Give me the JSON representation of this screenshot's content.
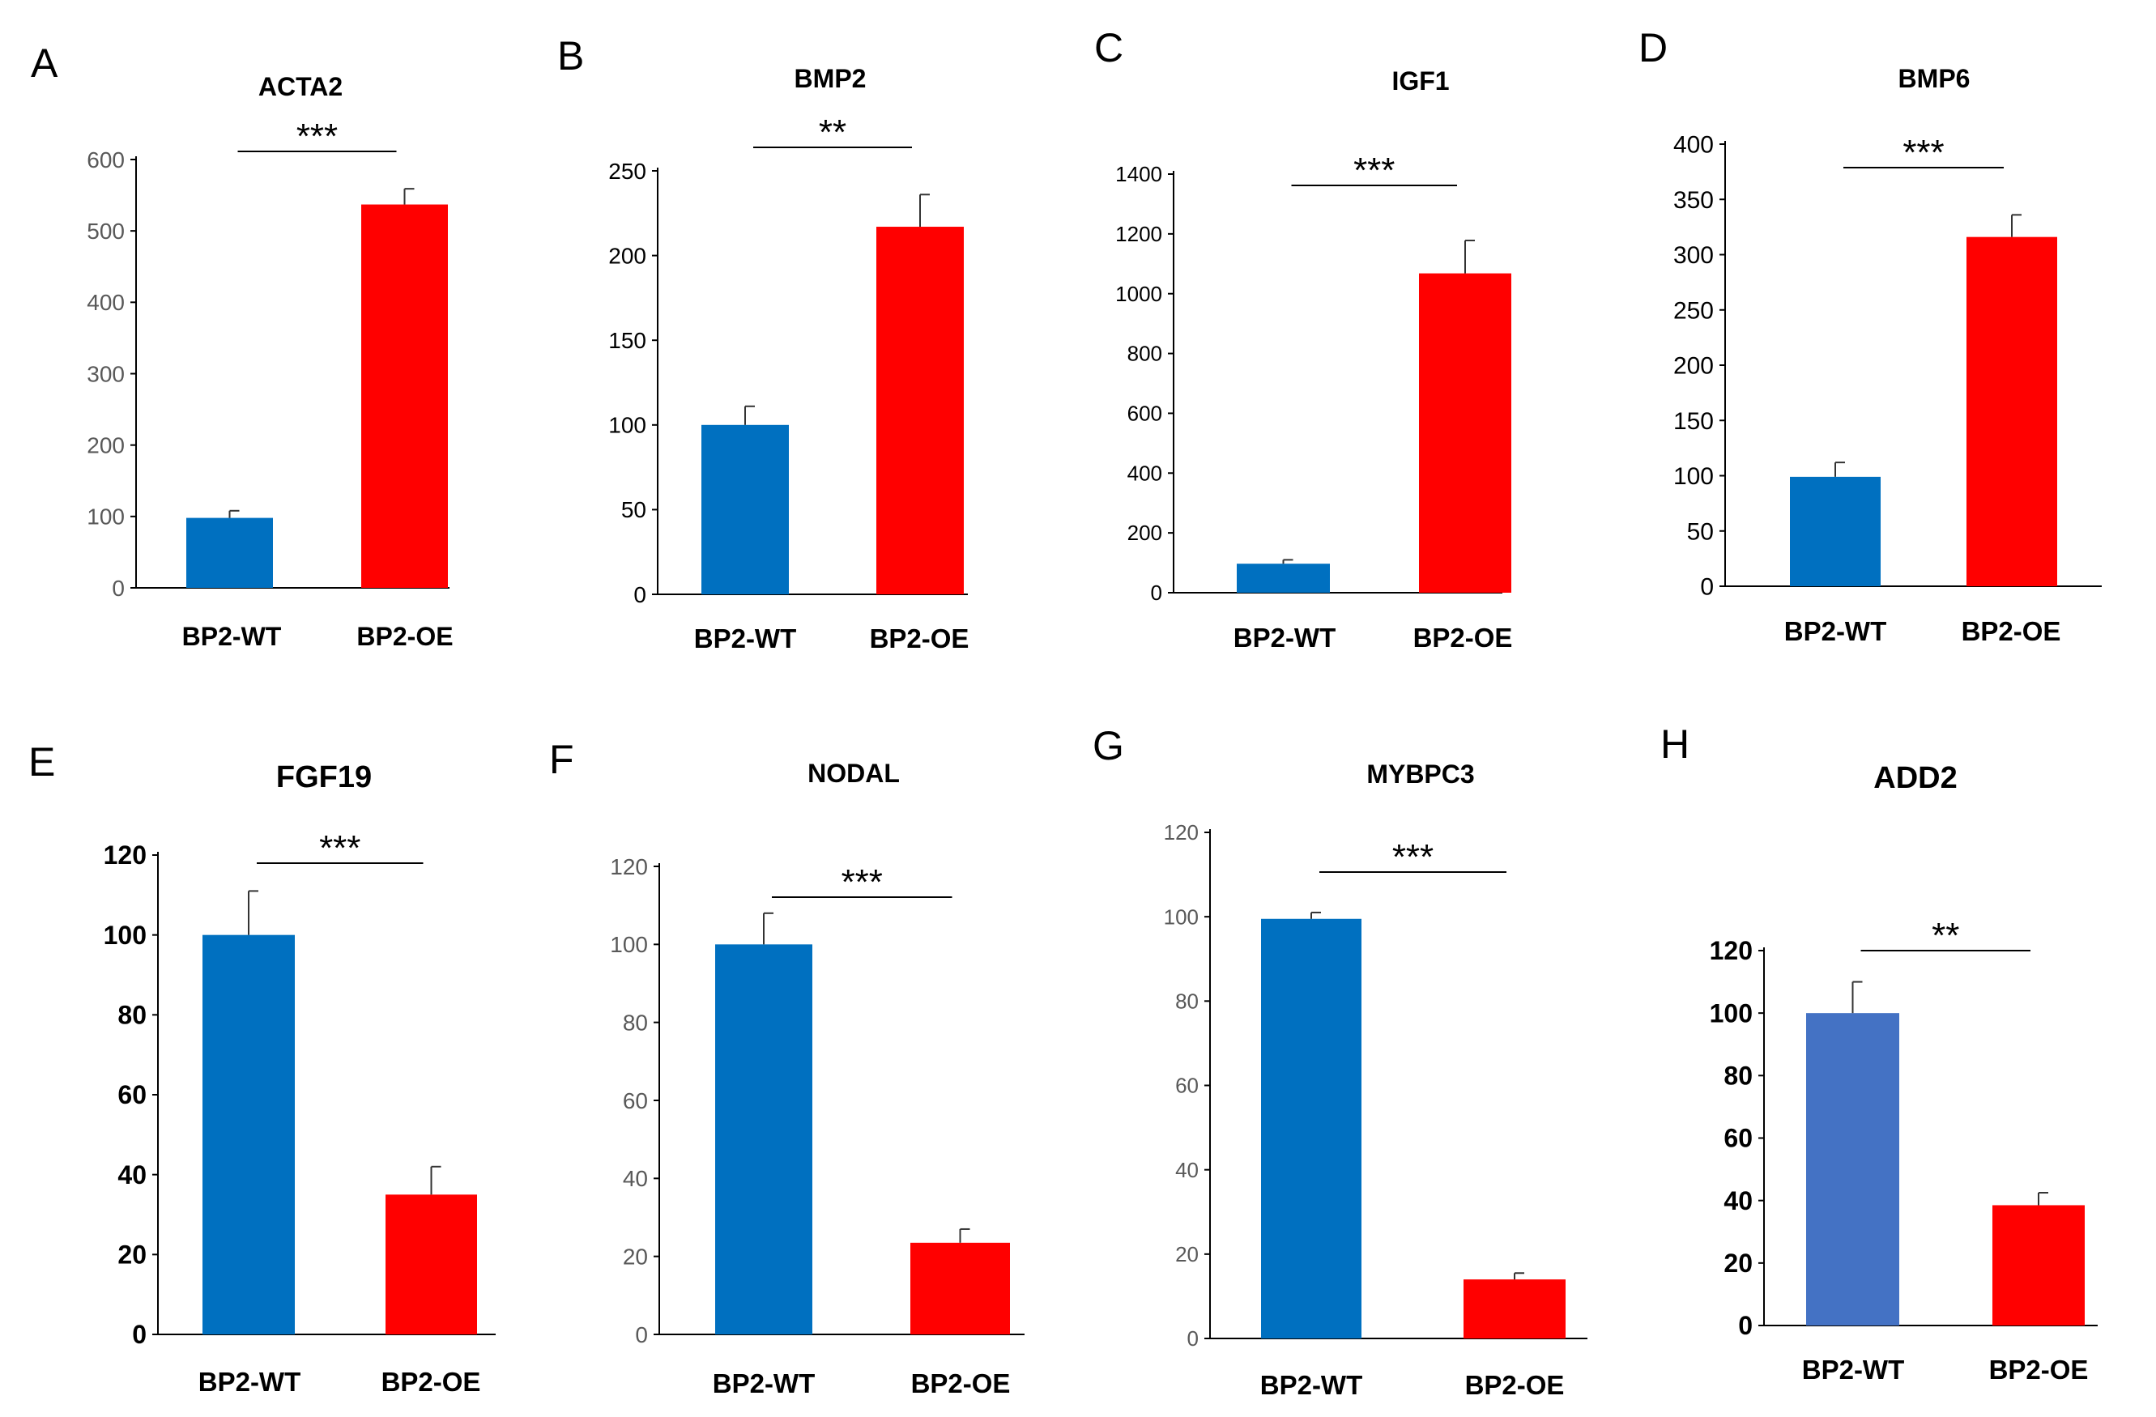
{
  "colors": {
    "wt": "#0070C0",
    "oe": "#FF0000",
    "wt_alt": "#4472C4"
  },
  "chart_data": [
    {
      "panel": "A",
      "type": "bar",
      "title": "ACTA2",
      "categories": [
        "BP2-WT",
        "BP2-OE"
      ],
      "values": [
        98,
        537
      ],
      "errors": [
        10,
        22
      ],
      "ylim": [
        0,
        600
      ],
      "ticks": [
        0,
        100,
        200,
        300,
        400,
        500,
        600
      ],
      "significance": "***",
      "xlabel": "",
      "ylabel": ""
    },
    {
      "panel": "B",
      "type": "bar",
      "title": "BMP2",
      "categories": [
        "BP2-WT",
        "BP2-OE"
      ],
      "values": [
        100,
        217
      ],
      "errors": [
        11,
        19
      ],
      "ylim": [
        0,
        250
      ],
      "ticks": [
        0,
        50,
        100,
        150,
        200,
        250
      ],
      "significance": "**",
      "xlabel": "",
      "ylabel": ""
    },
    {
      "panel": "C",
      "type": "bar",
      "title": "IGF1",
      "categories": [
        "BP2-WT",
        "BP2-OE"
      ],
      "values": [
        97,
        1068
      ],
      "errors": [
        13,
        110
      ],
      "ylim": [
        0,
        1400
      ],
      "ticks": [
        0,
        200,
        400,
        600,
        800,
        1000,
        1200,
        1400
      ],
      "significance": "***",
      "xlabel": "",
      "ylabel": ""
    },
    {
      "panel": "D",
      "type": "bar",
      "title": "BMP6",
      "categories": [
        "BP2-WT",
        "BP2-OE"
      ],
      "values": [
        99,
        316
      ],
      "errors": [
        13,
        20
      ],
      "ylim": [
        0,
        400
      ],
      "ticks": [
        0,
        50,
        100,
        150,
        200,
        250,
        300,
        350,
        400
      ],
      "significance": "***",
      "xlabel": "",
      "ylabel": ""
    },
    {
      "panel": "E",
      "type": "bar",
      "title": "FGF19",
      "categories": [
        "BP2-WT",
        "BP2-OE"
      ],
      "values": [
        100,
        35
      ],
      "errors": [
        11,
        7
      ],
      "ylim": [
        0,
        120
      ],
      "ticks": [
        0,
        20,
        40,
        60,
        80,
        100,
        120
      ],
      "significance": "***",
      "xlabel": "",
      "ylabel": ""
    },
    {
      "panel": "F",
      "type": "bar",
      "title": "NODAL",
      "categories": [
        "BP2-WT",
        "BP2-OE"
      ],
      "values": [
        100,
        23.5
      ],
      "errors": [
        8,
        3.5
      ],
      "ylim": [
        0,
        120
      ],
      "ticks": [
        0,
        20,
        40,
        60,
        80,
        100,
        120
      ],
      "significance": "***",
      "xlabel": "",
      "ylabel": ""
    },
    {
      "panel": "G",
      "type": "bar",
      "title": "MYBPC3",
      "categories": [
        "BP2-WT",
        "BP2-OE"
      ],
      "values": [
        99.5,
        14
      ],
      "errors": [
        1.5,
        1.5
      ],
      "ylim": [
        0,
        120
      ],
      "ticks": [
        0,
        20,
        40,
        60,
        80,
        100,
        120
      ],
      "significance": "***",
      "xlabel": "",
      "ylabel": ""
    },
    {
      "panel": "H",
      "type": "bar",
      "title": "ADD2",
      "categories": [
        "BP2-WT",
        "BP2-OE"
      ],
      "values": [
        100,
        38.5
      ],
      "errors": [
        10,
        4
      ],
      "ylim": [
        0,
        120
      ],
      "ticks": [
        0,
        20,
        40,
        60,
        80,
        100,
        120
      ],
      "significance": "**",
      "xlabel": "",
      "ylabel": ""
    }
  ]
}
